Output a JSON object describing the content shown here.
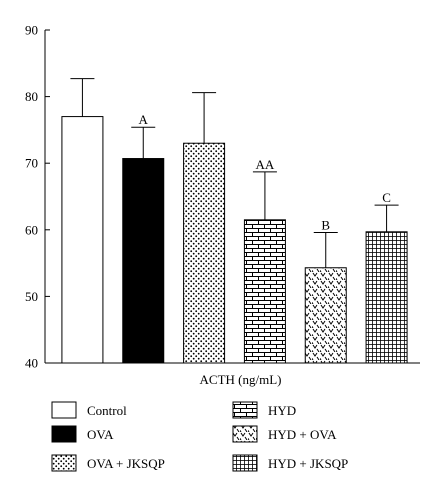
{
  "chart_data": {
    "type": "bar",
    "xlabel": "ACTH (ng/mL)",
    "ylim": [
      40,
      90
    ],
    "yticks": [
      40,
      50,
      60,
      70,
      80,
      90
    ],
    "categories": [
      "Control",
      "OVA",
      "OVA + JKSQP",
      "HYD",
      "HYD + OVA",
      "HYD + JKSQP"
    ],
    "values": [
      77.0,
      70.7,
      73.0,
      61.5,
      54.3,
      59.7
    ],
    "errors": [
      5.7,
      4.7,
      7.6,
      7.2,
      5.3,
      4.0
    ],
    "significance": [
      "",
      "A",
      "",
      "AA",
      "B",
      "C"
    ],
    "patterns": [
      "white",
      "black",
      "dots",
      "bricks",
      "waves",
      "grid"
    ],
    "grid": false,
    "legend_placement": "bottom"
  }
}
